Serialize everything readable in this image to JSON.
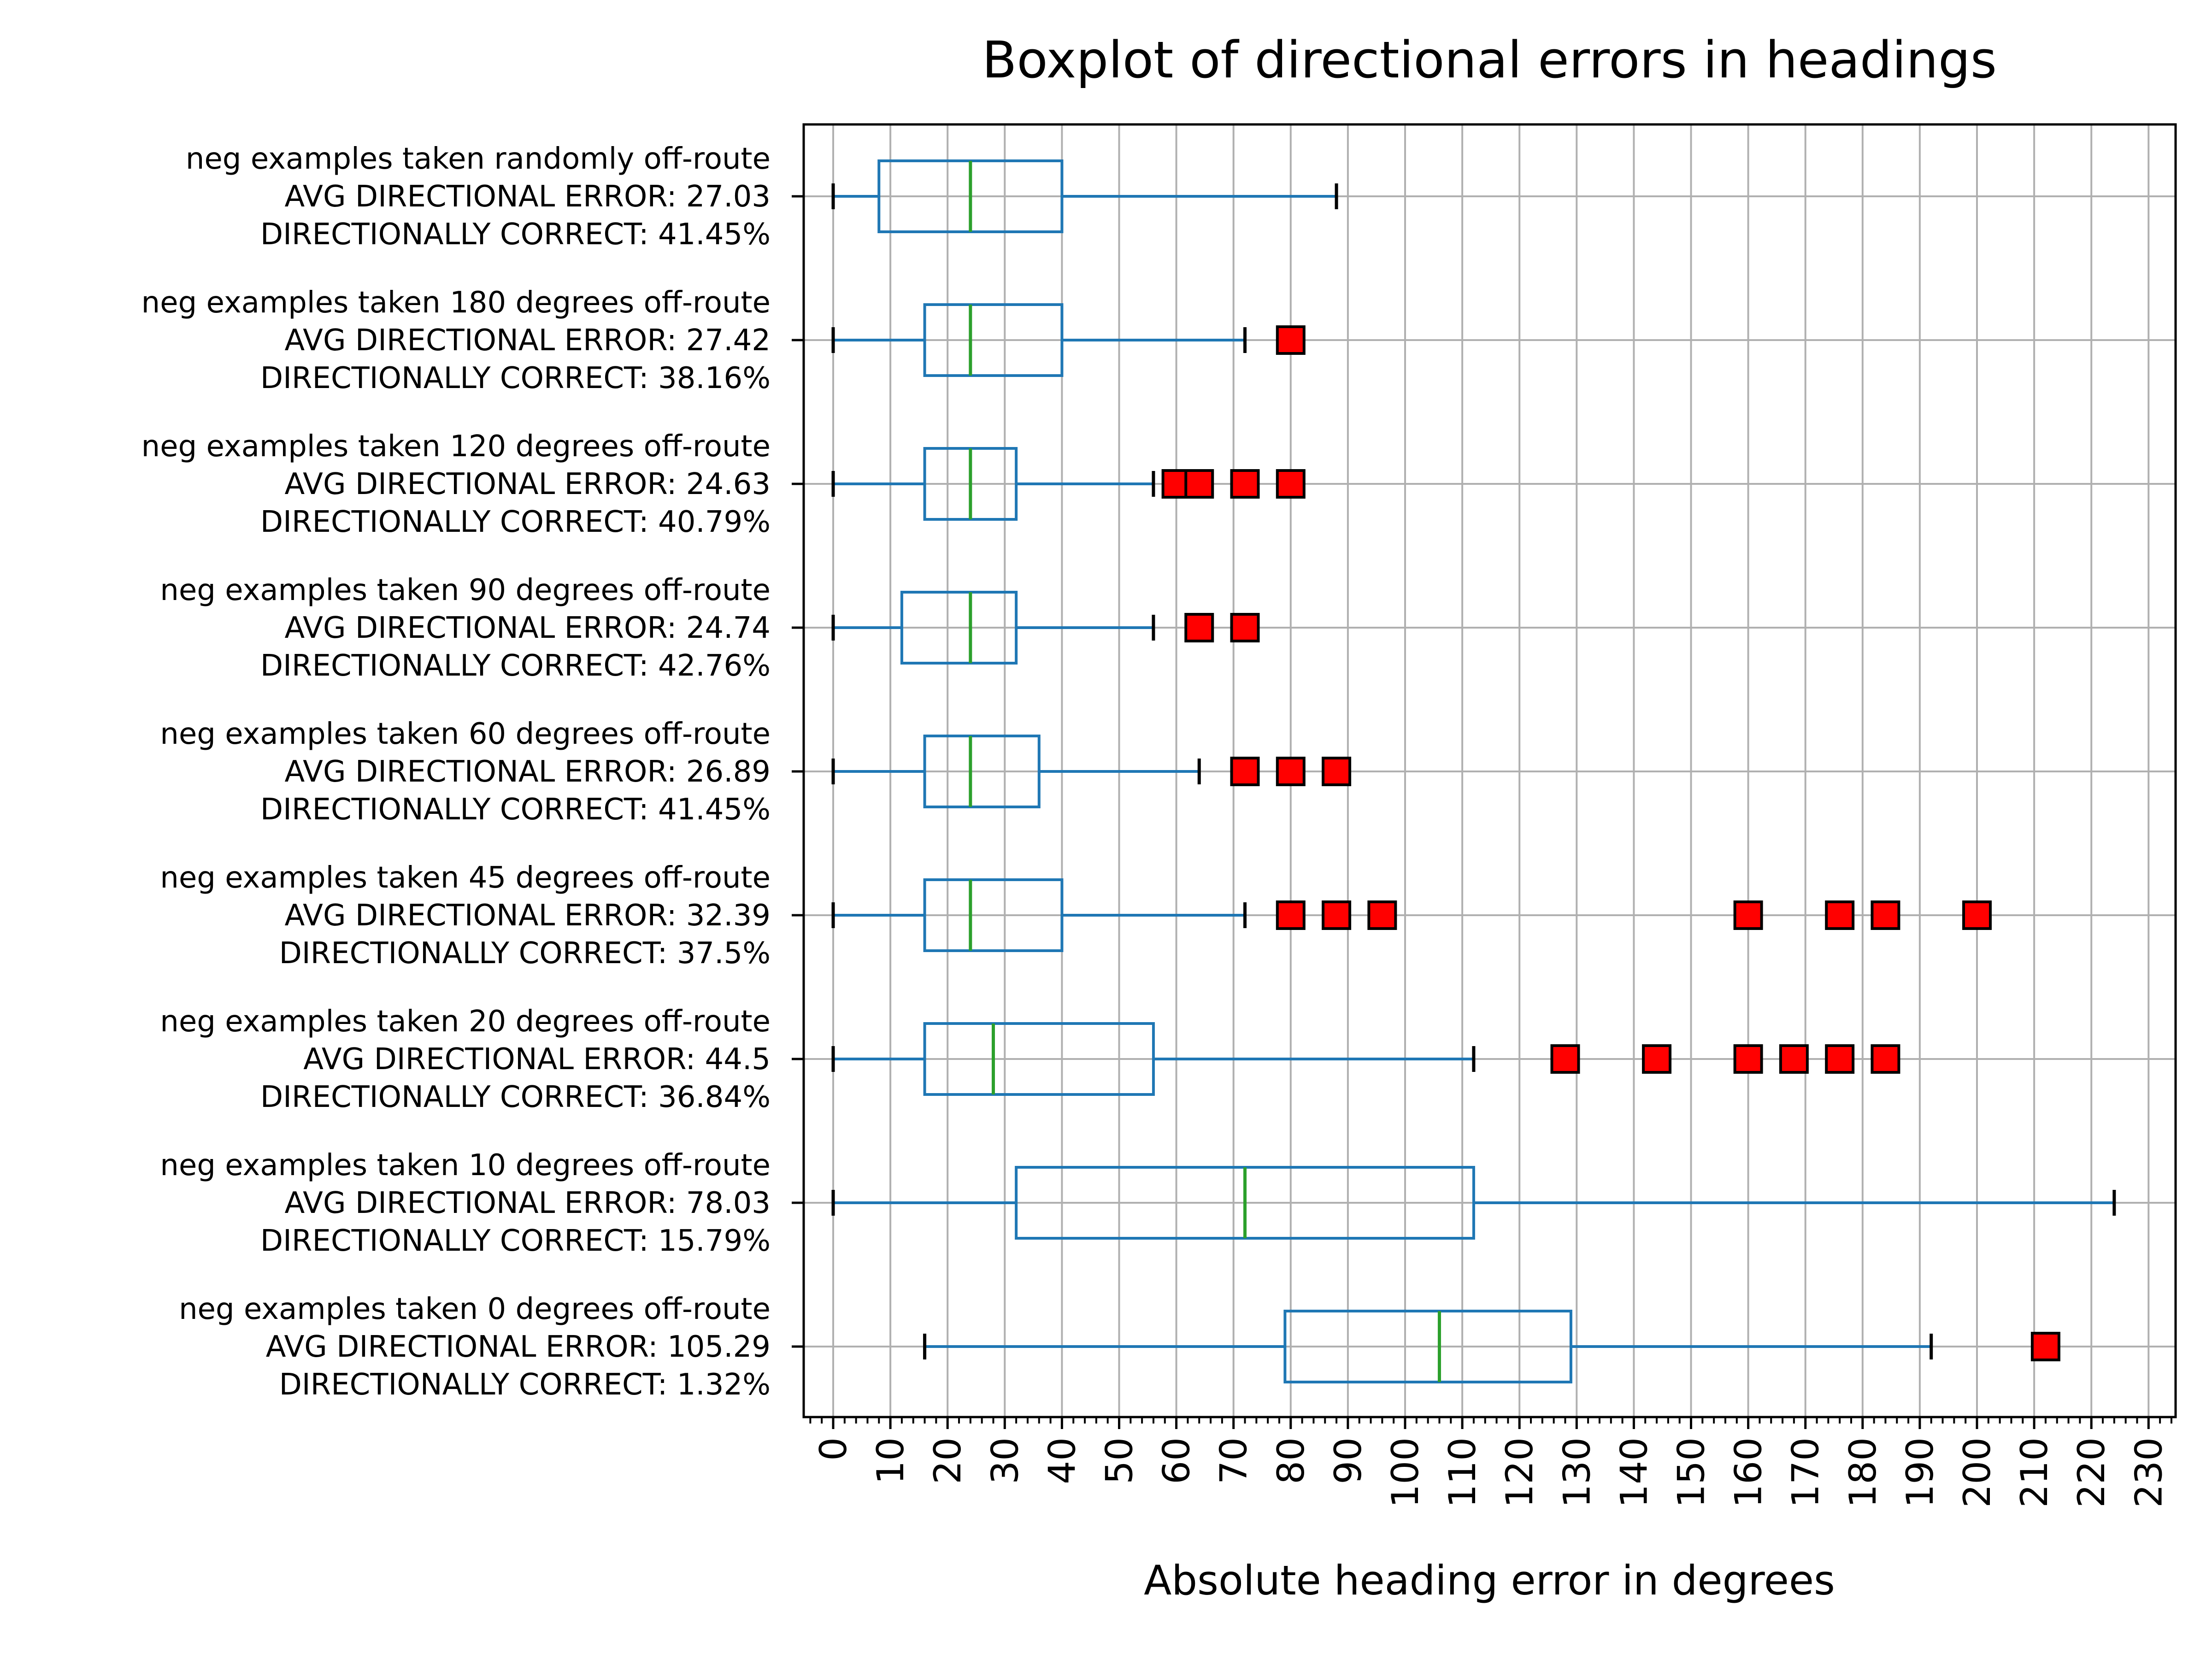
{
  "chart_data": {
    "type": "boxplot",
    "orientation": "horizontal",
    "title": "Boxplot of directional errors in headings",
    "xlabel": "Absolute heading error in degrees",
    "xlim": [
      -5,
      235
    ],
    "xticks": [
      "0",
      "10",
      "20",
      "30",
      "40",
      "50",
      "60",
      "70",
      "80",
      "90",
      "100",
      "110",
      "120",
      "130",
      "140",
      "150",
      "160",
      "170",
      "180",
      "190",
      "200",
      "210",
      "220",
      "230"
    ],
    "grid": true,
    "colors": {
      "box": "#1f77b4",
      "median": "#2ca02c",
      "outlier_fill": "#ff0000",
      "outlier_edge": "#000000",
      "grid": "#b0b0b0"
    },
    "categories": [
      {
        "label": [
          "neg examples taken randomly off-route",
          "AVG DIRECTIONAL ERROR: 27.03",
          "DIRECTIONALLY CORRECT: 41.45%"
        ],
        "whisker_low": 0,
        "q1": 8,
        "median": 24,
        "q3": 40,
        "whisker_high": 88,
        "outliers": []
      },
      {
        "label": [
          "neg examples taken 180 degrees off-route",
          "AVG DIRECTIONAL ERROR: 27.42",
          "DIRECTIONALLY CORRECT: 38.16%"
        ],
        "whisker_low": 0,
        "q1": 16,
        "median": 24,
        "q3": 40,
        "whisker_high": 72,
        "outliers": [
          80
        ]
      },
      {
        "label": [
          "neg examples taken 120 degrees off-route",
          "AVG DIRECTIONAL ERROR: 24.63",
          "DIRECTIONALLY CORRECT: 40.79%"
        ],
        "whisker_low": 0,
        "q1": 16,
        "median": 24,
        "q3": 32,
        "whisker_high": 56,
        "outliers": [
          60,
          64,
          72,
          80
        ]
      },
      {
        "label": [
          "neg examples taken 90 degrees off-route",
          "AVG DIRECTIONAL ERROR: 24.74",
          "DIRECTIONALLY CORRECT: 42.76%"
        ],
        "whisker_low": 0,
        "q1": 12,
        "median": 24,
        "q3": 32,
        "whisker_high": 56,
        "outliers": [
          64,
          72
        ]
      },
      {
        "label": [
          "neg examples taken 60 degrees off-route",
          "AVG DIRECTIONAL ERROR: 26.89",
          "DIRECTIONALLY CORRECT: 41.45%"
        ],
        "whisker_low": 0,
        "q1": 16,
        "median": 24,
        "q3": 36,
        "whisker_high": 64,
        "outliers": [
          72,
          80,
          88
        ]
      },
      {
        "label": [
          "neg examples taken 45 degrees off-route",
          "AVG DIRECTIONAL ERROR: 32.39",
          "DIRECTIONALLY CORRECT: 37.5%"
        ],
        "whisker_low": 0,
        "q1": 16,
        "median": 24,
        "q3": 40,
        "whisker_high": 72,
        "outliers": [
          80,
          88,
          96,
          160,
          176,
          184,
          200
        ]
      },
      {
        "label": [
          "neg examples taken 20 degrees off-route",
          "AVG DIRECTIONAL ERROR: 44.5",
          "DIRECTIONALLY CORRECT: 36.84%"
        ],
        "whisker_low": 0,
        "q1": 16,
        "median": 28,
        "q3": 56,
        "whisker_high": 112,
        "outliers": [
          128,
          144,
          160,
          168,
          176,
          184
        ]
      },
      {
        "label": [
          "neg examples taken 10 degrees off-route",
          "AVG DIRECTIONAL ERROR: 78.03",
          "DIRECTIONALLY CORRECT: 15.79%"
        ],
        "whisker_low": 0,
        "q1": 32,
        "median": 72,
        "q3": 112,
        "whisker_high": 224,
        "outliers": []
      },
      {
        "label": [
          "neg examples taken 0 degrees off-route",
          "AVG DIRECTIONAL ERROR: 105.29",
          "DIRECTIONALLY CORRECT: 1.32%"
        ],
        "whisker_low": 16,
        "q1": 79,
        "median": 106,
        "q3": 129,
        "whisker_high": 192,
        "outliers": [
          212
        ]
      }
    ]
  }
}
